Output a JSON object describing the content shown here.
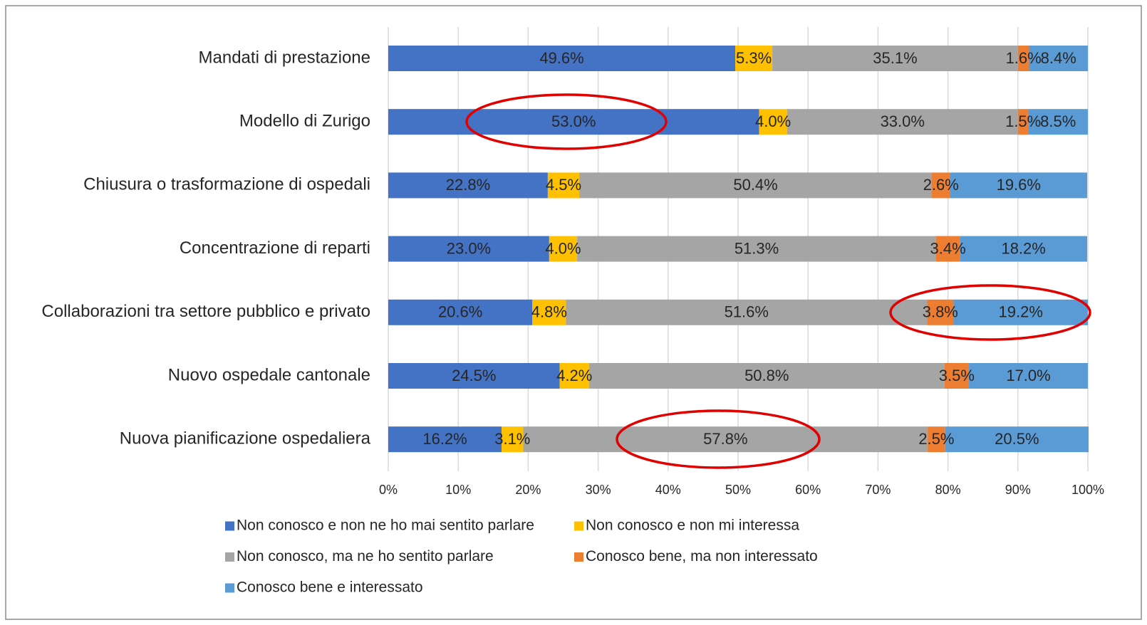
{
  "chart_data": {
    "type": "stacked-barh",
    "categories": [
      "Mandati di prestazione",
      "Modello di Zurigo",
      "Chiusura o trasformazione di ospedali",
      "Concentrazione di reparti",
      "Collaborazioni tra settore pubblico e privato",
      "Nuovo ospedale cantonale",
      "Nuova pianificazione ospedaliera"
    ],
    "series": [
      {
        "name": "Non conosco e non ne ho mai sentito parlare",
        "color": "#4472c4",
        "values": [
          49.6,
          53.0,
          22.8,
          23.0,
          20.6,
          24.5,
          16.2
        ],
        "value_labels": [
          "49.6%",
          "53.0%",
          "22.8%",
          "23.0%",
          "20.6%",
          "24.5%",
          "16.2%"
        ]
      },
      {
        "name": "Non conosco e non mi interessa",
        "color": "#ffc000",
        "values": [
          5.3,
          4.0,
          4.5,
          4.0,
          4.8,
          4.2,
          3.1
        ],
        "value_labels": [
          "5.3%",
          "4.0%",
          "4.5%",
          "4.0%",
          "4.8%",
          "4.2%",
          "3.1%"
        ]
      },
      {
        "name": "Non conosco, ma ne ho sentito parlare",
        "color": "#a5a5a5",
        "values": [
          35.1,
          33.0,
          50.4,
          51.3,
          51.6,
          50.8,
          57.8
        ],
        "value_labels": [
          "35.1%",
          "33.0%",
          "50.4%",
          "51.3%",
          "51.6%",
          "50.8%",
          "57.8%"
        ]
      },
      {
        "name": "Conosco bene, ma non interessato",
        "color": "#ed7d31",
        "values": [
          1.6,
          1.5,
          2.6,
          3.4,
          3.8,
          3.5,
          2.5
        ],
        "value_labels": [
          "1.6%",
          "1.5%",
          "2.6%",
          "3.4%",
          "3.8%",
          "3.5%",
          "2.5%"
        ]
      },
      {
        "name": "Conosco bene e interessato",
        "color": "#5b9bd5",
        "values": [
          8.4,
          8.5,
          19.6,
          18.2,
          19.2,
          17.0,
          20.5
        ],
        "value_labels": [
          "8.4%",
          "8.5%",
          "19.6%",
          "18.2%",
          "19.2%",
          "17.0%",
          "20.5%"
        ]
      }
    ],
    "xlim": [
      0,
      100
    ],
    "xticks": [
      {
        "value": 0,
        "label": "0%"
      },
      {
        "value": 10,
        "label": "10%"
      },
      {
        "value": 20,
        "label": "20%"
      },
      {
        "value": 30,
        "label": "30%"
      },
      {
        "value": 40,
        "label": "40%"
      },
      {
        "value": 50,
        "label": "50%"
      },
      {
        "value": 60,
        "label": "60%"
      },
      {
        "value": 70,
        "label": "70%"
      },
      {
        "value": 80,
        "label": "80%"
      },
      {
        "value": 90,
        "label": "90%"
      },
      {
        "value": 100,
        "label": "100%"
      }
    ],
    "grid": true,
    "legend": "bottom"
  }
}
